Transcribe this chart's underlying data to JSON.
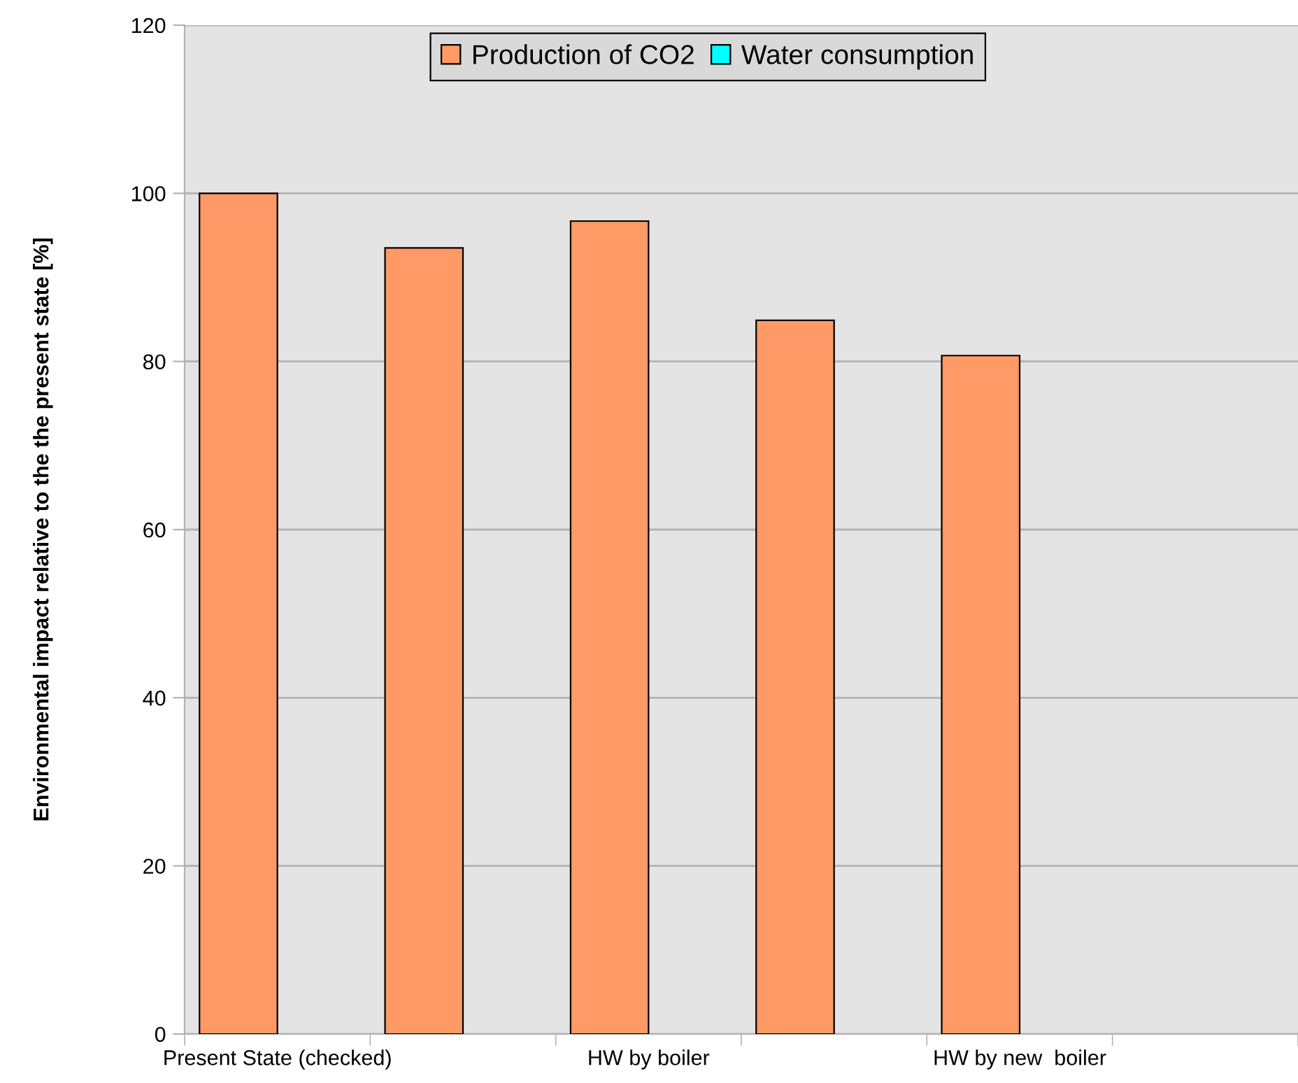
{
  "chart_data": {
    "type": "bar",
    "ylabel": "Environmental impact relative to the the present state [%]",
    "categories": [
      "Present State (checked)",
      null,
      "HW by boiler",
      null,
      "HW by new  boiler",
      null
    ],
    "series": [
      {
        "name": "Production of CO2",
        "color": "#ff9966",
        "values": [
          100,
          93.5,
          96.7,
          84.9,
          80.7,
          null
        ]
      },
      {
        "name": "Water consumption",
        "color": "#00ffff",
        "values": [
          null,
          null,
          null,
          null,
          null,
          null
        ]
      }
    ],
    "ylim": [
      0,
      120
    ],
    "yticks": [
      0,
      20,
      40,
      60,
      80,
      100,
      120
    ],
    "grid": "y",
    "legend": "top"
  }
}
